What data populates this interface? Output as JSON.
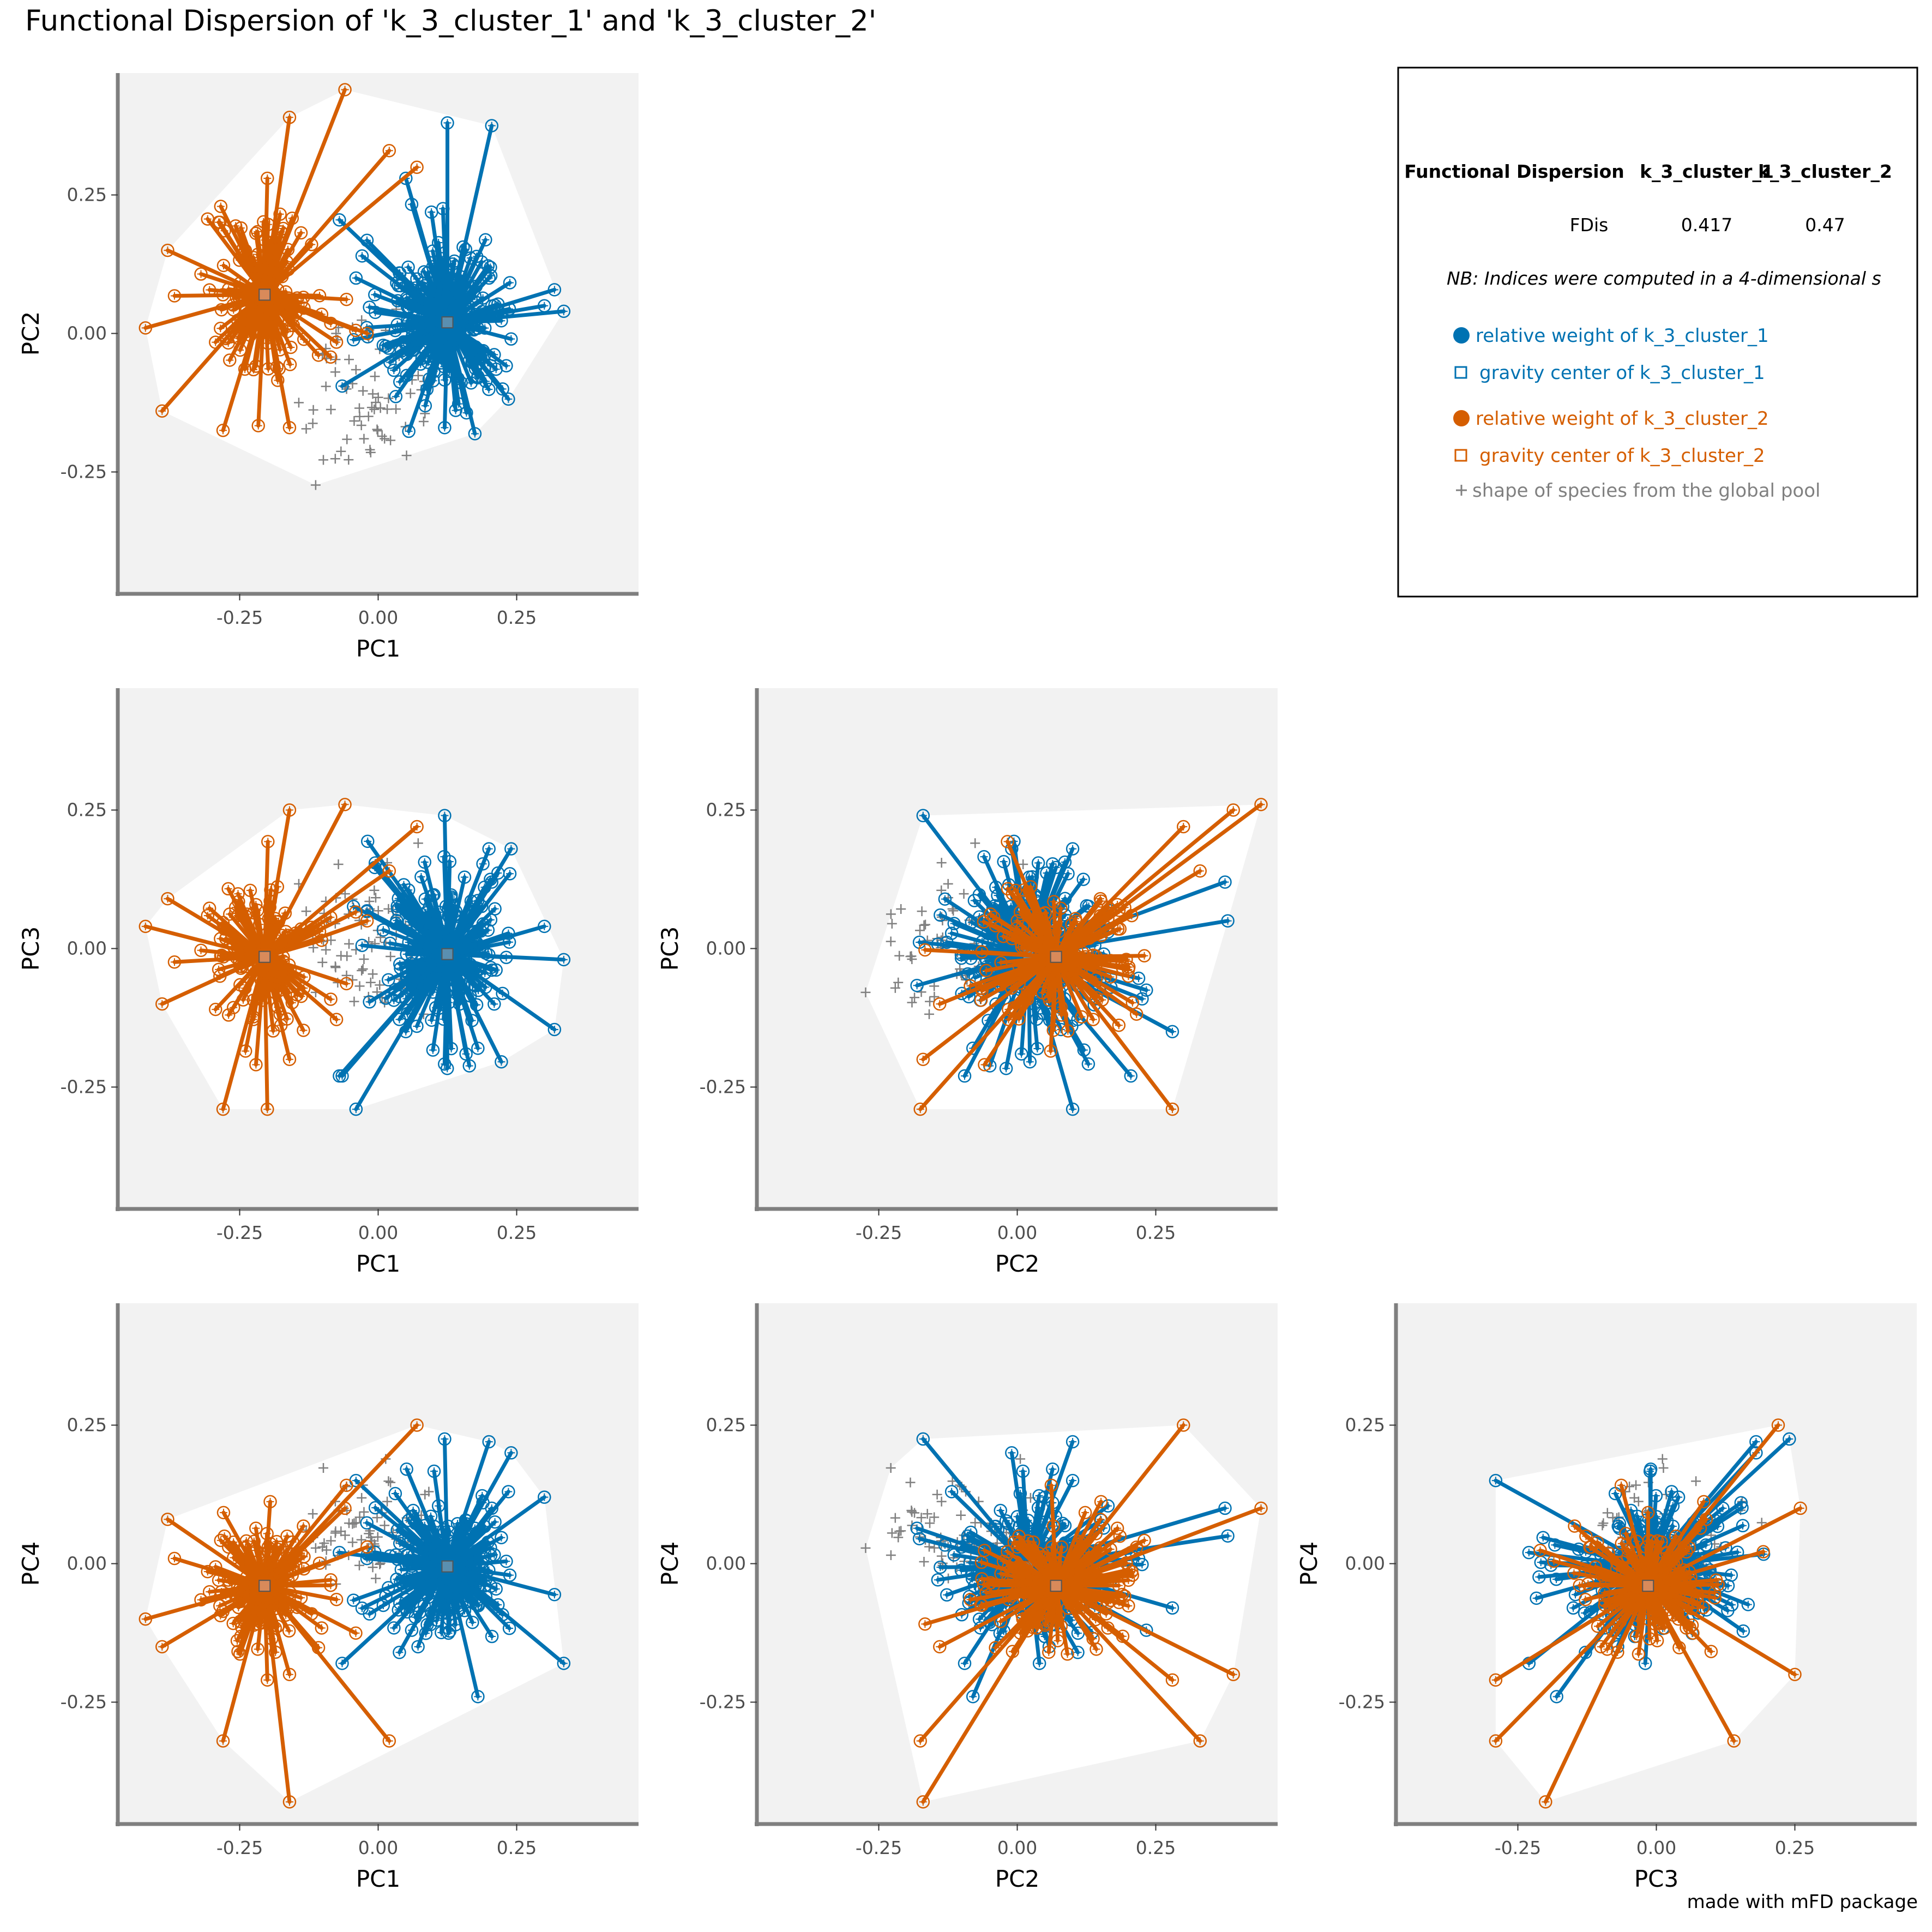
{
  "title": "Functional Dispersion of 'k_3_cluster_1' and 'k_3_cluster_2'",
  "credit": "made with mFD package",
  "colors": {
    "cluster_1": "#0072B2",
    "cluster_2": "#D55E00",
    "pool": "#808080",
    "panel_bg": "#F2F2F2",
    "hull_fill": "#FFFFFF",
    "axis_line": "#7F7F7F"
  },
  "chart_data": {
    "type": "scatter",
    "axis_range": [
      -0.47,
      0.47
    ],
    "ticks": [
      -0.25,
      0,
      0.25
    ],
    "tick_labels": [
      "-0.25",
      "0.00",
      "0.25"
    ],
    "grid": false,
    "legend_placement": "top-right",
    "panels": [
      {
        "id": "pc1-pc2",
        "xlabel": "PC1",
        "ylabel": "PC2",
        "dims": [
          0,
          1
        ]
      },
      {
        "id": "pc1-pc3",
        "xlabel": "PC1",
        "ylabel": "PC3",
        "dims": [
          0,
          2
        ]
      },
      {
        "id": "pc2-pc3",
        "xlabel": "PC2",
        "ylabel": "PC3",
        "dims": [
          1,
          2
        ]
      },
      {
        "id": "pc1-pc4",
        "xlabel": "PC1",
        "ylabel": "PC4",
        "dims": [
          0,
          3
        ]
      },
      {
        "id": "pc2-pc4",
        "xlabel": "PC2",
        "ylabel": "PC4",
        "dims": [
          1,
          3
        ]
      },
      {
        "id": "pc3-pc4",
        "xlabel": "PC3",
        "ylabel": "PC4",
        "dims": [
          2,
          3
        ]
      }
    ],
    "series": [
      {
        "id": "cluster_1",
        "weight_label": "relative weight of k_3_cluster_1",
        "center_label": "gravity center of k_3_cluster_1",
        "gravity_center": [
          0.125,
          0.02,
          -0.01,
          -0.005
        ],
        "spread": [
          0.075,
          0.095,
          0.1,
          0.085
        ],
        "extremes": [
          [
            0.125,
            0.38,
            0.05,
            0.05
          ],
          [
            0.205,
            0.375,
            0.12,
            0.1
          ],
          [
            0.335,
            0.04,
            -0.02,
            -0.18
          ],
          [
            0.24,
            -0.01,
            0.18,
            0.2
          ],
          [
            -0.07,
            0.205,
            -0.23,
            0.02
          ],
          [
            -0.065,
            -0.095,
            -0.23,
            -0.18
          ],
          [
            0.12,
            -0.17,
            0.24,
            0.225
          ],
          [
            0.18,
            -0.08,
            -0.18,
            -0.24
          ],
          [
            0.3,
            0.05,
            0.04,
            0.12
          ],
          [
            0.05,
            0.28,
            -0.15,
            -0.08
          ],
          [
            -0.04,
            0.1,
            -0.29,
            0.15
          ],
          [
            0.2,
            0.1,
            0.18,
            0.22
          ]
        ]
      },
      {
        "id": "cluster_2",
        "weight_label": "relative weight of k_3_cluster_2",
        "center_label": "gravity center of k_3_cluster_2",
        "gravity_center": [
          -0.205,
          0.07,
          -0.015,
          -0.04
        ],
        "spread": [
          0.07,
          0.09,
          0.09,
          0.075
        ],
        "extremes": [
          [
            -0.06,
            0.44,
            0.26,
            0.1
          ],
          [
            -0.16,
            0.39,
            0.25,
            -0.2
          ],
          [
            -0.42,
            0.01,
            0.04,
            -0.1
          ],
          [
            -0.39,
            -0.14,
            -0.1,
            -0.15
          ],
          [
            -0.28,
            -0.175,
            -0.29,
            -0.32
          ],
          [
            -0.16,
            -0.17,
            -0.2,
            -0.43
          ],
          [
            -0.2,
            0.28,
            -0.29,
            -0.21
          ],
          [
            -0.38,
            0.15,
            0.09,
            0.08
          ],
          [
            0.07,
            0.3,
            0.22,
            0.25
          ],
          [
            -0.02,
            0.0,
            0.05,
            0.03
          ],
          [
            0.02,
            0.33,
            0.14,
            -0.32
          ],
          [
            -0.27,
            0.08,
            -0.12,
            0.03
          ]
        ]
      }
    ],
    "pool_label": "shape of species from the global pool",
    "pool_center": [
      -0.02,
      -0.1,
      0.02,
      0.06
    ],
    "pool_spread": [
      0.06,
      0.07,
      0.06,
      0.05
    ]
  },
  "table": {
    "headers": [
      "Functional Dispersion",
      "k_3_cluster_1",
      "k_3_cluster_2"
    ],
    "row_label": "FDis",
    "row_values": [
      "0.417",
      "0.47"
    ],
    "note": "NB: Indices were computed in a 4-dimensional s"
  }
}
